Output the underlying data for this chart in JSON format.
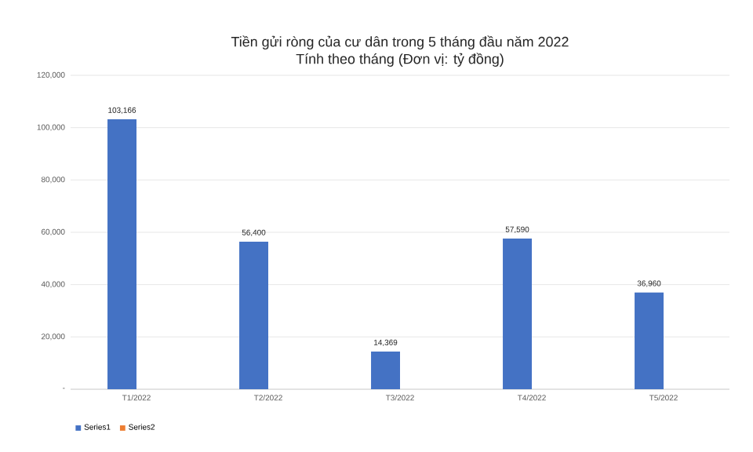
{
  "chart_data": {
    "type": "bar",
    "title": "Tiền gửi ròng của cư dân trong 5 tháng đầu năm 2022",
    "subtitle": "Tính theo tháng (Đơn vị: tỷ đồng)",
    "categories": [
      "T1/2022",
      "T2/2022",
      "T3/2022",
      "T4/2022",
      "T5/2022"
    ],
    "series": [
      {
        "name": "Series1",
        "color": "#4472c4",
        "values": [
          103166,
          56400,
          14369,
          57590,
          36960
        ],
        "value_labels": [
          "103,166",
          "56,400",
          "14,369",
          "57,590",
          "36,960"
        ]
      },
      {
        "name": "Series2",
        "color": "#ed7d31",
        "values": [
          null,
          null,
          null,
          null,
          null
        ]
      }
    ],
    "ylim": [
      0,
      120000
    ],
    "yticks": [
      {
        "value": 0,
        "label": "-"
      },
      {
        "value": 20000,
        "label": "20,000"
      },
      {
        "value": 40000,
        "label": "40,000"
      },
      {
        "value": 60000,
        "label": "60,000"
      },
      {
        "value": 80000,
        "label": "80,000"
      },
      {
        "value": 100000,
        "label": "100,000"
      },
      {
        "value": 120000,
        "label": "120,000"
      }
    ],
    "grid": "y",
    "legend": "bottom left"
  }
}
